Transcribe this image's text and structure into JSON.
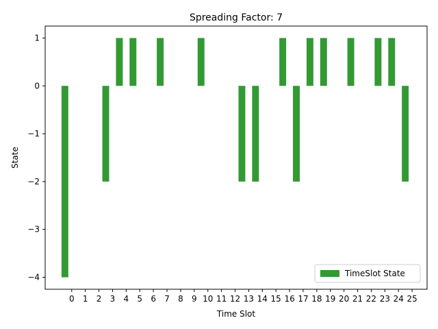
{
  "chart_data": {
    "type": "bar",
    "title": "Spreading Factor: 7",
    "xlabel": "Time Slot",
    "ylabel": "State",
    "x": [
      -0.5,
      0.5,
      1.5,
      2.5,
      3.5,
      4.5,
      5.5,
      6.5,
      7.5,
      8.5,
      9.5,
      10.5,
      11.5,
      12.5,
      13.5,
      14.5,
      15.5,
      16.5,
      17.5,
      18.5,
      19.5,
      20.5,
      21.5,
      22.5,
      23.5,
      24.5
    ],
    "series": [
      {
        "name": "TimeSlot State",
        "color": "#339933",
        "values": [
          -4,
          0,
          0,
          -2,
          1,
          1,
          0,
          1,
          0,
          0,
          1,
          0,
          0,
          -2,
          -2,
          0,
          1,
          -2,
          1,
          1,
          0,
          1,
          0,
          1,
          1,
          -2
        ]
      }
    ],
    "xticks": [
      0,
      1,
      2,
      3,
      4,
      5,
      6,
      7,
      8,
      9,
      10,
      11,
      12,
      13,
      14,
      15,
      16,
      17,
      18,
      19,
      20,
      21,
      22,
      23,
      24,
      25
    ],
    "xlim": [
      -1.95,
      26.1
    ],
    "ylim": [
      -4.25,
      1.25
    ],
    "yticks": [
      {
        "value": -4,
        "label": "−4"
      },
      {
        "value": -3,
        "label": "−3"
      },
      {
        "value": -2,
        "label": "−2"
      },
      {
        "value": -1,
        "label": "−1"
      },
      0,
      1
    ],
    "legend": "lower right"
  }
}
